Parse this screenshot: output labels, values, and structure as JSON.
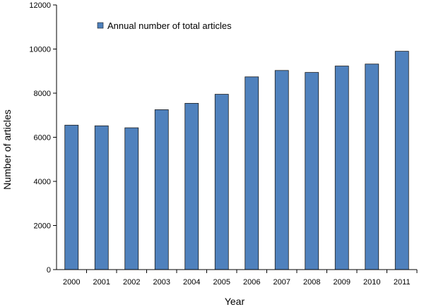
{
  "chart_data": {
    "type": "bar",
    "categories": [
      "2000",
      "2001",
      "2002",
      "2003",
      "2004",
      "2005",
      "2006",
      "2007",
      "2008",
      "2009",
      "2010",
      "2011"
    ],
    "series": [
      {
        "name": "Annual number of total articles",
        "values": [
          6550,
          6520,
          6430,
          7250,
          7540,
          7950,
          8740,
          9030,
          8940,
          9230,
          9320,
          9900
        ]
      }
    ],
    "xlabel": "Year",
    "ylabel": "Number of articles",
    "ylim": [
      0,
      12000
    ],
    "yticks": [
      0,
      2000,
      4000,
      6000,
      8000,
      10000,
      12000
    ],
    "grid": false,
    "legend_position": "top-left",
    "colors": {
      "bar_fill": "#4f81bd",
      "bar_stroke": "#1a1a1a",
      "axis": "#000000"
    }
  }
}
